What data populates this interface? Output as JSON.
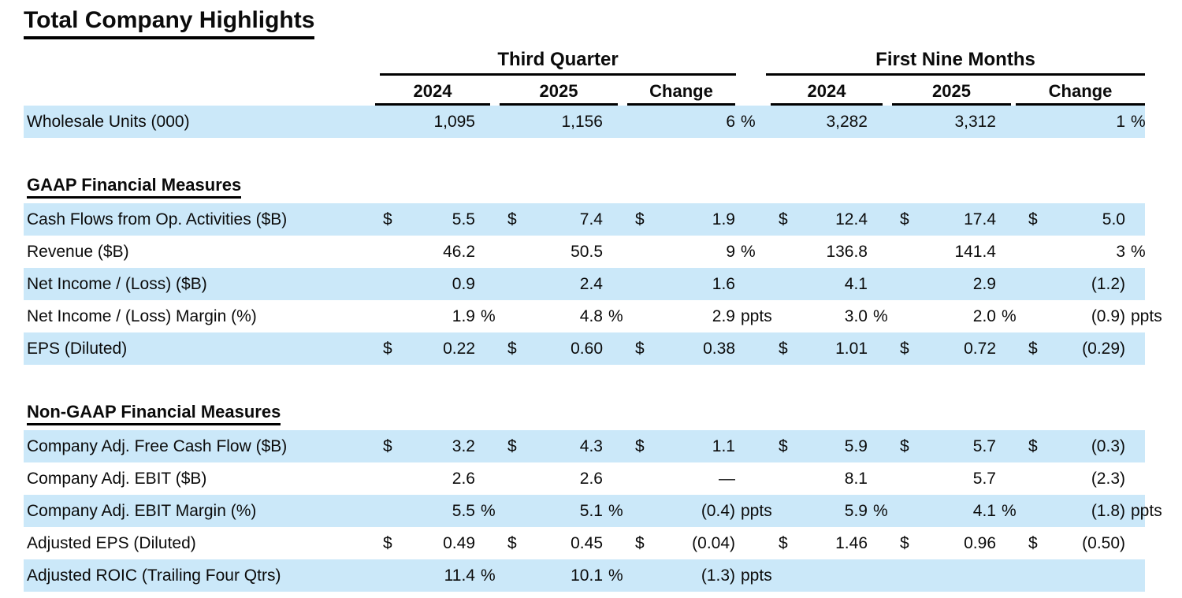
{
  "title": "Total Company Highlights",
  "colors": {
    "row_shade": "#cbe8f9",
    "text": "#0b0b0b",
    "rule": "#000000"
  },
  "table": {
    "groups": [
      "Third Quarter",
      "First Nine Months"
    ],
    "columns": [
      "2024",
      "2025",
      "Change",
      "2024",
      "2025",
      "Change"
    ],
    "rows": [
      {
        "type": "data",
        "shaded": true,
        "label": "Wholesale Units (000)",
        "cells": [
          {
            "val": "1,095"
          },
          {
            "val": "1,156"
          },
          {
            "val": "6",
            "suf": "%"
          },
          {
            "val": "3,282"
          },
          {
            "val": "3,312"
          },
          {
            "val": "1",
            "suf": "%"
          }
        ]
      },
      {
        "type": "spacer"
      },
      {
        "type": "section",
        "label": "GAAP Financial Measures"
      },
      {
        "type": "data",
        "shaded": true,
        "label": "Cash Flows from Op. Activities ($B)",
        "cells": [
          {
            "cur": "$",
            "val": "5.5"
          },
          {
            "cur": "$",
            "val": "7.4"
          },
          {
            "cur": "$",
            "val": "1.9"
          },
          {
            "cur": "$",
            "val": "12.4"
          },
          {
            "cur": "$",
            "val": "17.4"
          },
          {
            "cur": "$",
            "val": "5.0"
          }
        ]
      },
      {
        "type": "data",
        "shaded": false,
        "label": "Revenue ($B)",
        "cells": [
          {
            "val": "46.2"
          },
          {
            "val": "50.5"
          },
          {
            "val": "9",
            "suf": "%"
          },
          {
            "val": "136.8"
          },
          {
            "val": "141.4"
          },
          {
            "val": "3",
            "suf": "%"
          }
        ]
      },
      {
        "type": "data",
        "shaded": true,
        "label": "Net Income / (Loss) ($B)",
        "cells": [
          {
            "val": "0.9"
          },
          {
            "val": "2.4"
          },
          {
            "val": "1.6"
          },
          {
            "val": "4.1"
          },
          {
            "val": "2.9"
          },
          {
            "val": "(1.2)"
          }
        ]
      },
      {
        "type": "data",
        "shaded": false,
        "label": "Net Income / (Loss) Margin (%)",
        "cells": [
          {
            "val": "1.9",
            "suf": "%"
          },
          {
            "val": "4.8",
            "suf": "%"
          },
          {
            "val": "2.9",
            "suf": "ppts"
          },
          {
            "val": "3.0",
            "suf": "%"
          },
          {
            "val": "2.0",
            "suf": "%"
          },
          {
            "val": "(0.9)",
            "suf": "ppts"
          }
        ]
      },
      {
        "type": "data",
        "shaded": true,
        "label": "EPS (Diluted)",
        "cells": [
          {
            "cur": "$",
            "val": "0.22"
          },
          {
            "cur": "$",
            "val": "0.60"
          },
          {
            "cur": "$",
            "val": "0.38"
          },
          {
            "cur": "$",
            "val": "1.01"
          },
          {
            "cur": "$",
            "val": "0.72"
          },
          {
            "cur": "$",
            "val": "(0.29)"
          }
        ]
      },
      {
        "type": "spacer"
      },
      {
        "type": "section",
        "label": "Non-GAAP Financial Measures"
      },
      {
        "type": "data",
        "shaded": true,
        "label": "Company Adj. Free Cash Flow ($B)",
        "cells": [
          {
            "cur": "$",
            "val": "3.2"
          },
          {
            "cur": "$",
            "val": "4.3"
          },
          {
            "cur": "$",
            "val": "1.1"
          },
          {
            "cur": "$",
            "val": "5.9"
          },
          {
            "cur": "$",
            "val": "5.7"
          },
          {
            "cur": "$",
            "val": "(0.3)"
          }
        ]
      },
      {
        "type": "data",
        "shaded": false,
        "label": "Company Adj. EBIT ($B)",
        "cells": [
          {
            "val": "2.6"
          },
          {
            "val": "2.6"
          },
          {
            "val": "—"
          },
          {
            "val": "8.1"
          },
          {
            "val": "5.7"
          },
          {
            "val": "(2.3)"
          }
        ]
      },
      {
        "type": "data",
        "shaded": true,
        "label": "Company Adj. EBIT Margin (%)",
        "cells": [
          {
            "val": "5.5",
            "suf": "%"
          },
          {
            "val": "5.1",
            "suf": "%"
          },
          {
            "val": "(0.4)",
            "suf": "ppts"
          },
          {
            "val": "5.9",
            "suf": "%"
          },
          {
            "val": "4.1",
            "suf": "%"
          },
          {
            "val": "(1.8)",
            "suf": "ppts"
          }
        ]
      },
      {
        "type": "data",
        "shaded": false,
        "label": "Adjusted EPS (Diluted)",
        "cells": [
          {
            "cur": "$",
            "val": "0.49"
          },
          {
            "cur": "$",
            "val": "0.45"
          },
          {
            "cur": "$",
            "val": "(0.04)"
          },
          {
            "cur": "$",
            "val": "1.46"
          },
          {
            "cur": "$",
            "val": "0.96"
          },
          {
            "cur": "$",
            "val": "(0.50)"
          }
        ]
      },
      {
        "type": "data",
        "shaded": true,
        "label": "Adjusted ROIC (Trailing Four Qtrs)",
        "cells": [
          {
            "val": "11.4",
            "suf": "%"
          },
          {
            "val": "10.1",
            "suf": "%"
          },
          {
            "val": "(1.3)",
            "suf": "ppts"
          },
          {},
          {},
          {}
        ]
      }
    ]
  }
}
